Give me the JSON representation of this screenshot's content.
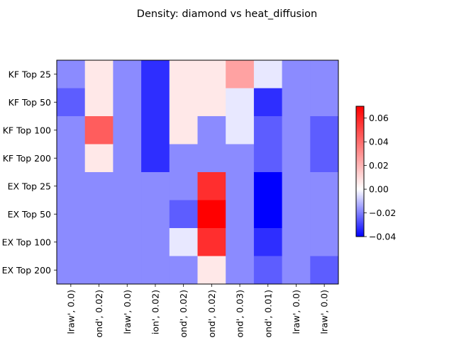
{
  "chart_data": {
    "type": "heatmap",
    "title": "Density: diamond vs heat_diffusion",
    "row_labels": [
      "KF Top 25",
      "KF Top 50",
      "KF Top 100",
      "KF Top 200",
      "EX Top 25",
      "EX Top 50",
      "EX Top 100",
      "EX Top 200"
    ],
    "col_labels": [
      "lraw', 0.0)",
      "ond', 0.02)",
      "lraw', 0.0)",
      "ion', 0.02)",
      "ond', 0.02)",
      "ond', 0.02)",
      "ond', 0.03)",
      "ond', 0.01)",
      "lraw', 0.0)",
      "lraw', 0.0)"
    ],
    "values": [
      [
        -0.01,
        0.02,
        -0.01,
        -0.03,
        0.02,
        0.02,
        0.035,
        0.01,
        -0.01,
        -0.01
      ],
      [
        -0.02,
        0.02,
        -0.01,
        -0.03,
        0.02,
        0.02,
        0.01,
        -0.03,
        -0.01,
        -0.01
      ],
      [
        -0.01,
        0.05,
        -0.01,
        -0.03,
        0.02,
        -0.01,
        0.01,
        -0.02,
        -0.01,
        -0.02
      ],
      [
        -0.01,
        0.02,
        -0.01,
        -0.03,
        -0.01,
        -0.01,
        -0.01,
        -0.02,
        -0.01,
        -0.02
      ],
      [
        -0.01,
        -0.01,
        -0.01,
        -0.01,
        -0.01,
        0.06,
        -0.01,
        -0.04,
        -0.01,
        -0.01
      ],
      [
        -0.01,
        -0.01,
        -0.01,
        -0.01,
        -0.02,
        0.07,
        -0.01,
        -0.04,
        -0.01,
        -0.01
      ],
      [
        -0.01,
        -0.01,
        -0.01,
        -0.01,
        0.01,
        0.06,
        -0.01,
        -0.03,
        -0.01,
        -0.01
      ],
      [
        -0.01,
        -0.01,
        -0.01,
        -0.01,
        -0.01,
        0.02,
        -0.01,
        -0.02,
        -0.01,
        -0.02
      ]
    ],
    "vmin": -0.04,
    "vmax": 0.07,
    "colormap": "bwr",
    "colorbar_ticks": [
      "0.06",
      "0.04",
      "0.02",
      "0.00",
      "−0.02",
      "−0.04"
    ],
    "colorbar_tick_values": [
      0.06,
      0.04,
      0.02,
      0.0,
      -0.02,
      -0.04
    ]
  }
}
